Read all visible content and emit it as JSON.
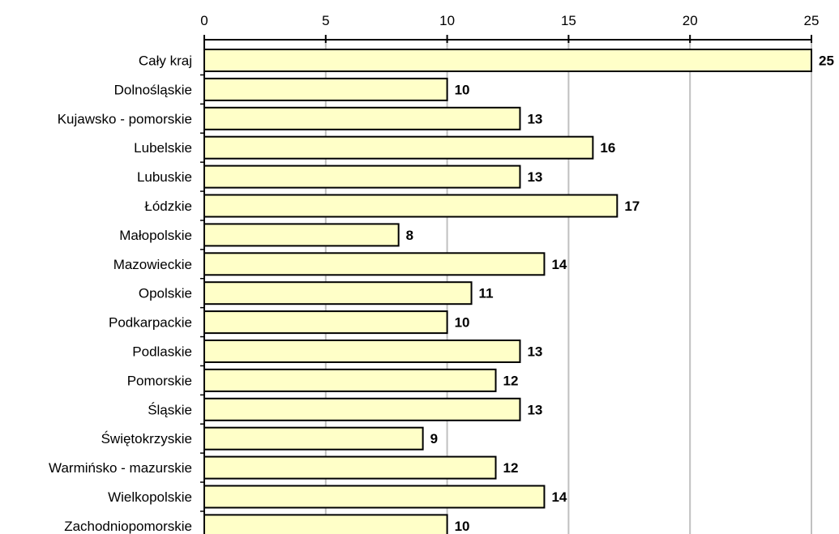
{
  "chart_data": {
    "type": "bar",
    "orientation": "horizontal",
    "title": "",
    "xlabel": "",
    "ylabel": "",
    "xlim": [
      0,
      25
    ],
    "x_ticks": [
      0,
      5,
      10,
      15,
      20,
      25
    ],
    "grid": true,
    "x_axis_position": "top",
    "categories": [
      "Cały kraj",
      "Dolnośląskie",
      "Kujawsko - pomorskie",
      "Lubelskie",
      "Lubuskie",
      "Łódzkie",
      "Małopolskie",
      "Mazowieckie",
      "Opolskie",
      "Podkarpackie",
      "Podlaskie",
      "Pomorskie",
      "Śląskie",
      "Świętokrzyskie",
      "Warmińsko - mazurskie",
      "Wielkopolskie",
      "Zachodniopomorskie"
    ],
    "values": [
      25,
      10,
      13,
      16,
      13,
      17,
      8,
      14,
      11,
      10,
      13,
      12,
      13,
      9,
      12,
      14,
      10
    ],
    "data_labels": [
      "25",
      "10",
      "13",
      "16",
      "13",
      "17",
      "8",
      "14",
      "11",
      "10",
      "13",
      "12",
      "13",
      "9",
      "12",
      "14",
      "10"
    ],
    "colors": {
      "bar_fill": "#FFFFC8",
      "bar_stroke": "#000000",
      "grid": "#C0C0C0",
      "axis": "#000000"
    }
  }
}
